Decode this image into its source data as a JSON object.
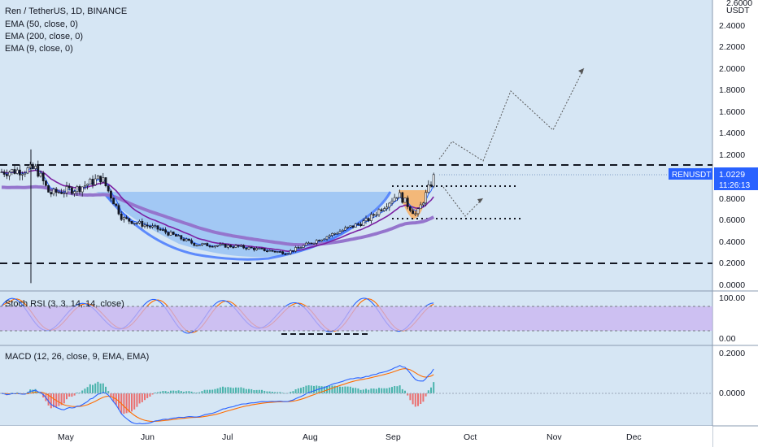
{
  "header": {
    "symbol_title": "Ren / TetherUS, 1D, BINANCE",
    "indicators": [
      "EMA (50, close, 0)",
      "EMA (200, close, 0)",
      "EMA (9, close, 0)"
    ]
  },
  "price_axis": {
    "currency": "USDT",
    "partial_top_label": "2.6000",
    "ticks": [
      "2.4000",
      "2.2000",
      "2.0000",
      "1.8000",
      "1.6000",
      "1.4000",
      "1.2000",
      "0.8000",
      "0.6000",
      "0.4000",
      "0.2000",
      "0.0000"
    ],
    "last_price_symbol": "RENUSDT",
    "last_price": "1.0229",
    "countdown": "11:26:13"
  },
  "stoch_rsi": {
    "title": "Stoch RSI (3, 3, 14, 14, close)",
    "ticks": [
      "100.00",
      "0.00"
    ]
  },
  "macd": {
    "title": "MACD (12, 26, close, 9, EMA, EMA)",
    "ticks": [
      "0.2000",
      "0.0000"
    ]
  },
  "time_axis": {
    "labels": [
      "May",
      "Jun",
      "Jul",
      "Aug",
      "Sep",
      "Oct",
      "Nov",
      "Dec"
    ]
  },
  "colors": {
    "background": "#d6e6f4",
    "candle": "#131722",
    "ema50": "#7b1fa2",
    "ema200": "#9575cd",
    "ema9": "#2962ff",
    "cup_fill": "#90bdf4",
    "handle_fill": "#f6b26b",
    "stoch_band": "#c9b3f2",
    "stoch_k": "#2962ff",
    "stoch_d": "#ff6d00",
    "price_label": "#2962ff"
  },
  "chart_data": {
    "type": "candlestick",
    "x_unit": "date",
    "y_unit": "USDT",
    "ylim": [
      0,
      2.6
    ],
    "key_levels": [
      1.12,
      0.2,
      0.92,
      0.6
    ],
    "close_path": [
      {
        "x": "Apr 1",
        "y": 1.05
      },
      {
        "x": "Apr 15",
        "y": 1.08
      },
      {
        "x": "Apr 20",
        "y": 0.85
      },
      {
        "x": "May 1",
        "y": 0.9
      },
      {
        "x": "May 10",
        "y": 1.0
      },
      {
        "x": "May 18",
        "y": 0.62
      },
      {
        "x": "Jun 1",
        "y": 0.52
      },
      {
        "x": "Jun 15",
        "y": 0.38
      },
      {
        "x": "Jul 1",
        "y": 0.36
      },
      {
        "x": "Jul 20",
        "y": 0.3
      },
      {
        "x": "Aug 1",
        "y": 0.42
      },
      {
        "x": "Aug 20",
        "y": 0.6
      },
      {
        "x": "Sep 1",
        "y": 0.85
      },
      {
        "x": "Sep 8",
        "y": 0.65
      },
      {
        "x": "Sep 15",
        "y": 1.02
      }
    ],
    "series": [
      {
        "name": "EMA (50, close, 0)",
        "type": "line"
      },
      {
        "name": "EMA (200, close, 0)",
        "type": "line"
      },
      {
        "name": "EMA (9, close, 0)",
        "type": "line"
      }
    ],
    "projection": [
      {
        "x": "Sep 20",
        "y": 1.2
      },
      {
        "x": "Sep 27",
        "y": 1.35
      },
      {
        "x": "Oct 3",
        "y": 1.12
      },
      {
        "x": "Oct 17",
        "y": 1.78
      },
      {
        "x": "Nov 3",
        "y": 1.43
      },
      {
        "x": "Nov 17",
        "y": 2.0
      }
    ]
  }
}
